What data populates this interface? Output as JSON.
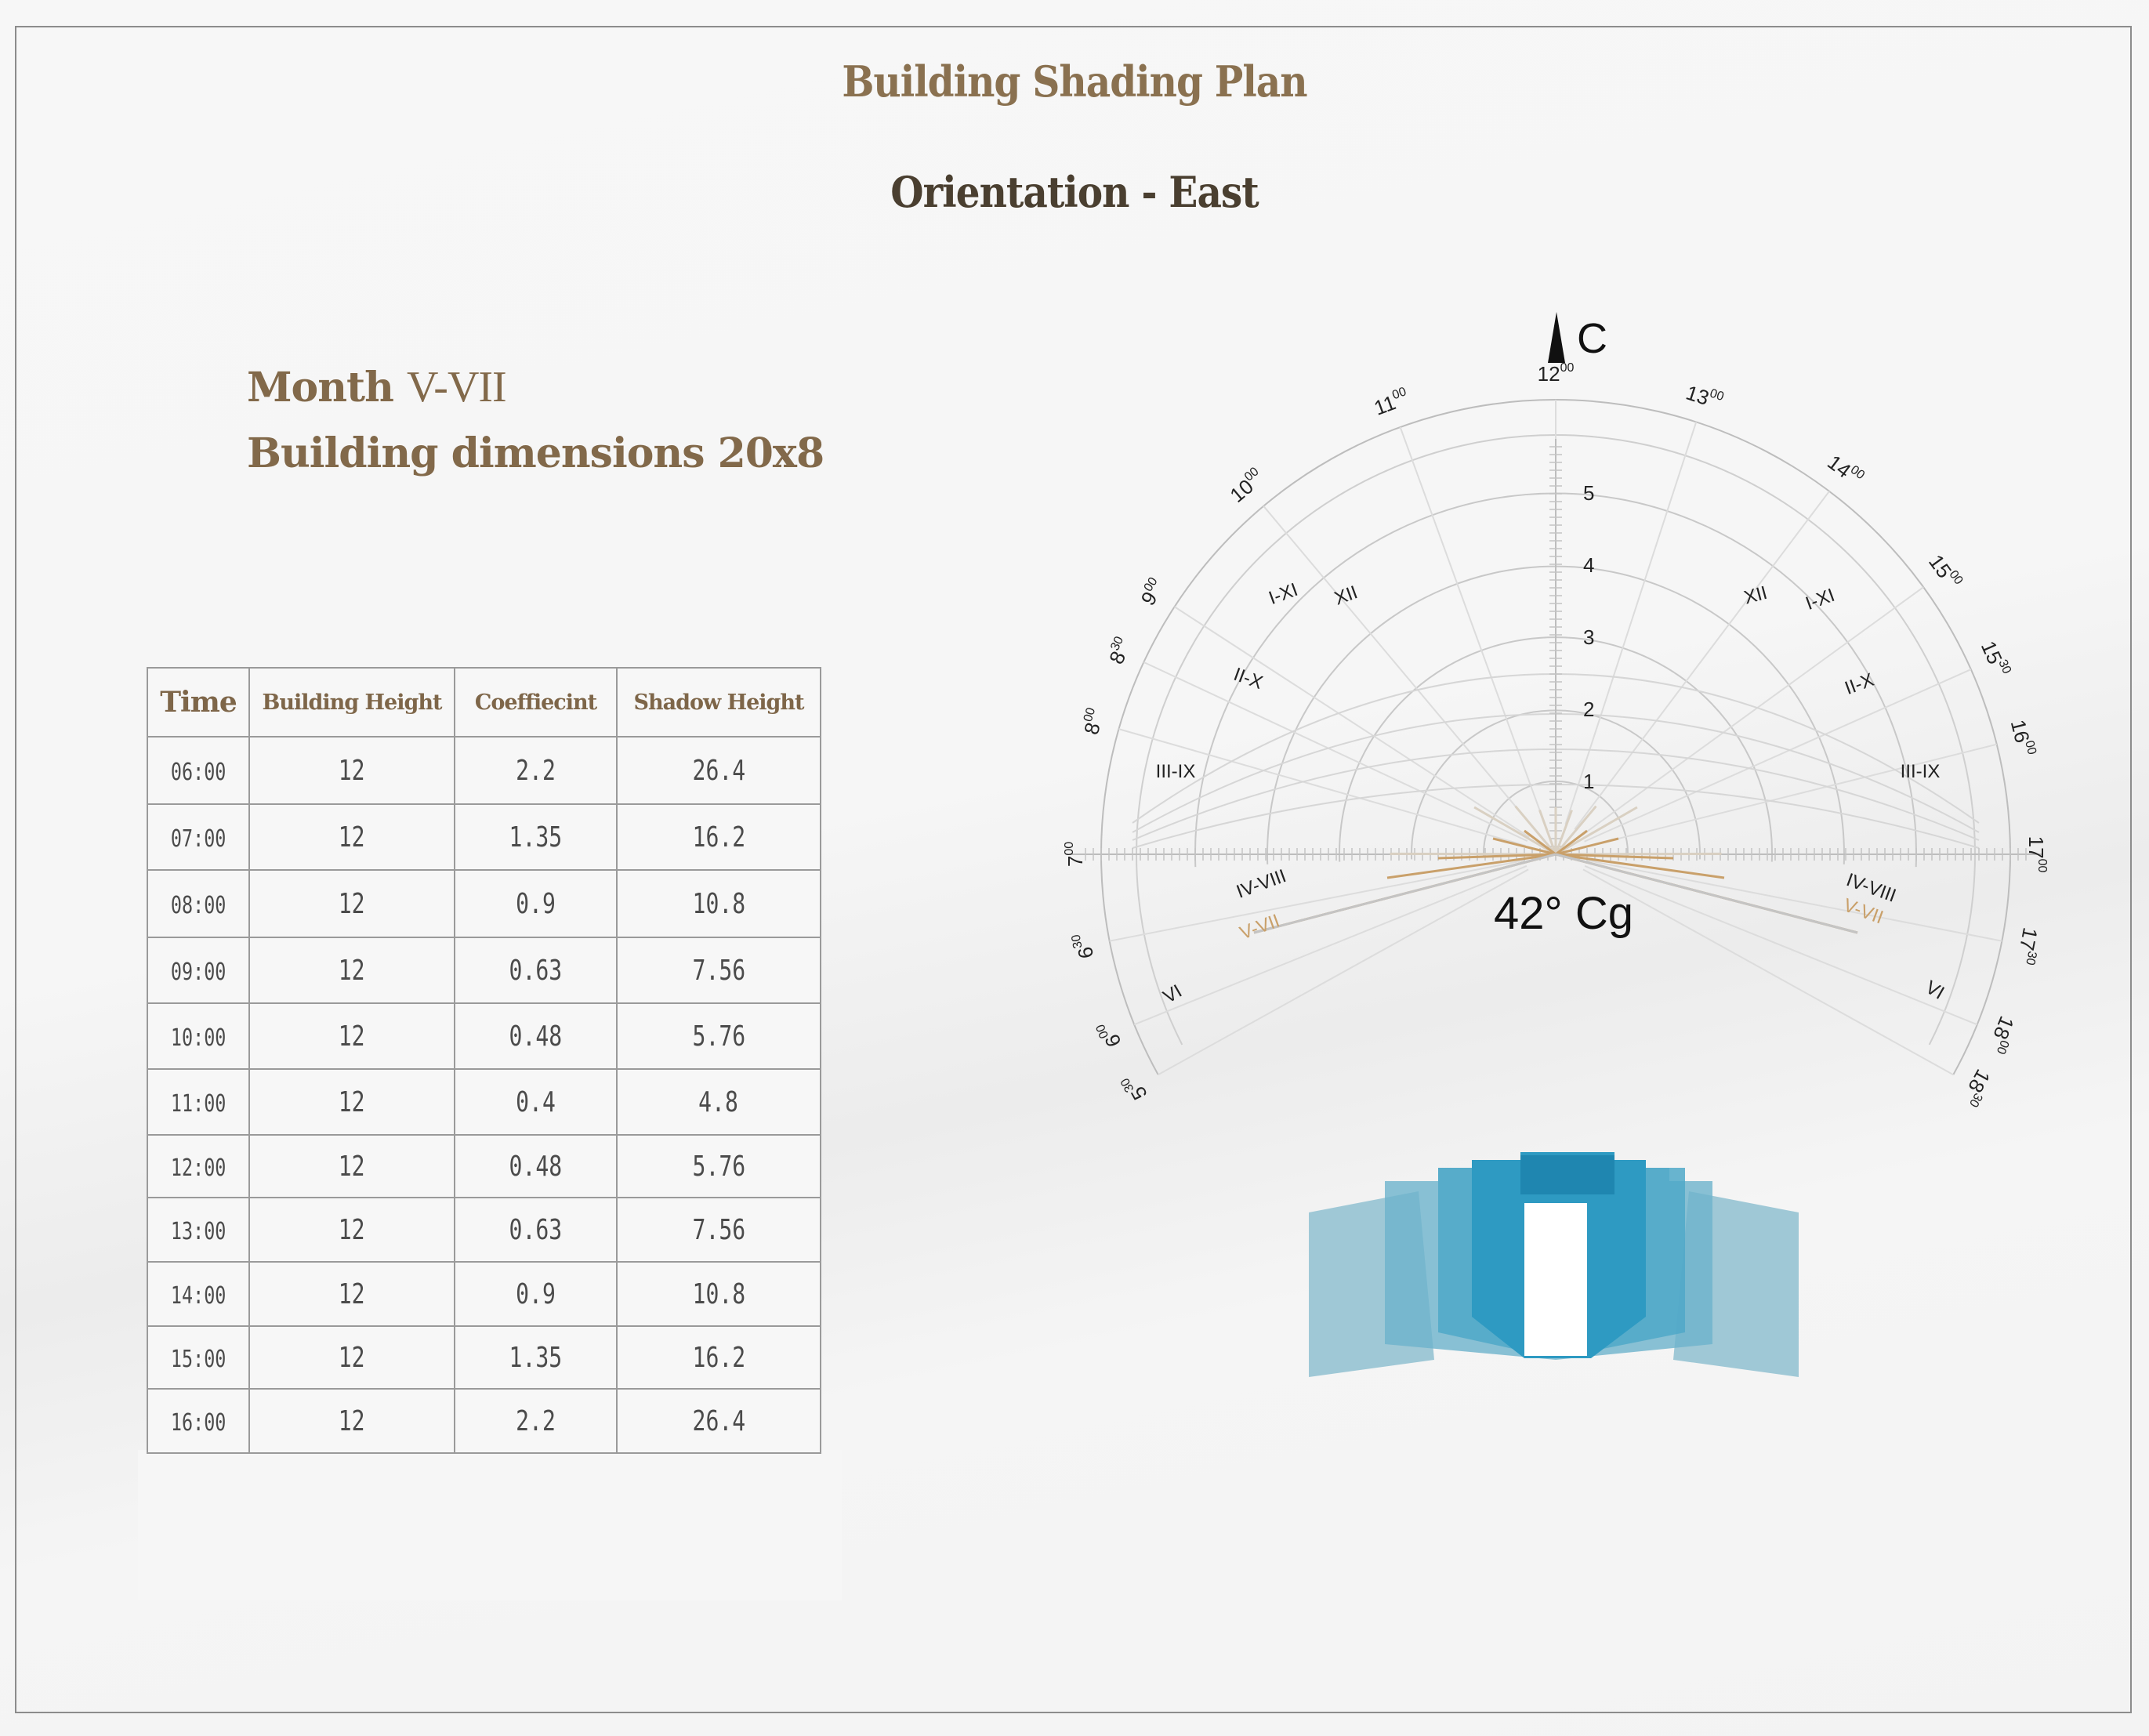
{
  "header": {
    "title": "Building Shading Plan",
    "subtitle": "Orientation - East"
  },
  "info": {
    "month_label": "Month",
    "month_value": "V-VII",
    "dimensions": "Building dimensions 20x8"
  },
  "table": {
    "headers": [
      "Time",
      "Building Height",
      "Coeffiecint",
      "Shadow Height"
    ],
    "rows": [
      [
        "06:00",
        "12",
        "2.2",
        "26.4"
      ],
      [
        "07:00",
        "12",
        "1.35",
        "16.2"
      ],
      [
        "08:00",
        "12",
        "0.9",
        "10.8"
      ],
      [
        "09:00",
        "12",
        "0.63",
        "7.56"
      ],
      [
        "10:00",
        "12",
        "0.48",
        "5.76"
      ],
      [
        "11:00",
        "12",
        "0.4",
        "4.8"
      ],
      [
        "12:00",
        "12",
        "0.48",
        "5.76"
      ],
      [
        "13:00",
        "12",
        "0.63",
        "7.56"
      ],
      [
        "14:00",
        "12",
        "0.9",
        "10.8"
      ],
      [
        "15:00",
        "12",
        "1.35",
        "16.2"
      ],
      [
        "16:00",
        "12",
        "2.2",
        "26.4"
      ]
    ]
  },
  "sun_chart": {
    "north_label": "C",
    "latitude_label": "42° Cg",
    "radial_scale": [
      "1",
      "2",
      "3",
      "4",
      "5"
    ],
    "hour_labels": [
      {
        "h": "5",
        "m": "30"
      },
      {
        "h": "6",
        "m": "00"
      },
      {
        "h": "6",
        "m": "30"
      },
      {
        "h": "7",
        "m": "00"
      },
      {
        "h": "8",
        "m": "00"
      },
      {
        "h": "8",
        "m": "30"
      },
      {
        "h": "9",
        "m": "00"
      },
      {
        "h": "10",
        "m": "00"
      },
      {
        "h": "11",
        "m": "00"
      },
      {
        "h": "12",
        "m": "00"
      },
      {
        "h": "13",
        "m": "00"
      },
      {
        "h": "14",
        "m": "00"
      },
      {
        "h": "15",
        "m": "00"
      },
      {
        "h": "15",
        "m": "30"
      },
      {
        "h": "16",
        "m": "00"
      },
      {
        "h": "17",
        "m": "00"
      },
      {
        "h": "17",
        "m": "30"
      },
      {
        "h": "18",
        "m": "00"
      },
      {
        "h": "18",
        "m": "30"
      }
    ],
    "month_labels": {
      "left": [
        "I-XI",
        "XII",
        "II-X",
        "III-IX",
        "IV-VIII",
        "V-VII",
        "VI"
      ],
      "right": [
        "XII",
        "I-XI",
        "II-X",
        "III-IX",
        "IV-VIII",
        "V-VII",
        "VI"
      ]
    },
    "highlight_color": "#c9a06a",
    "grid_color": "#c8c8c8"
  },
  "colors": {
    "title": "#8a7150",
    "subtitle": "#4a3f30",
    "building_light": "#8fc0d3",
    "building_mid": "#5bacc9",
    "building_dark": "#2e9ac2"
  }
}
